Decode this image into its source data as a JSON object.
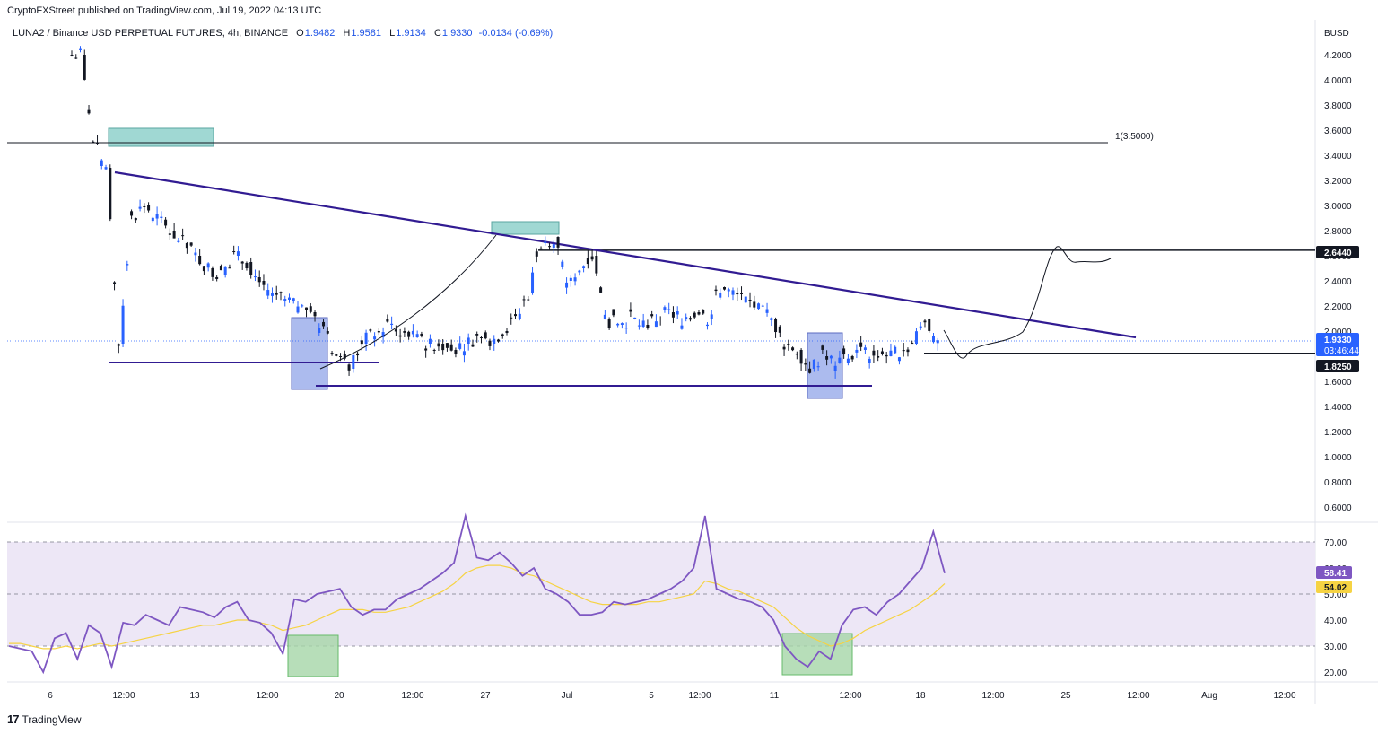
{
  "header": {
    "published_by": "CryptoFXStreet published on TradingView.com, Jul 19, 2022 04:13 UTC"
  },
  "legend": {
    "symbol": "LUNA2 / Binance USD PERPETUAL FUTURES, 4h, BINANCE",
    "open_label": "O",
    "open": "1.9482",
    "high_label": "H",
    "high": "1.9581",
    "low_label": "L",
    "low": "1.9134",
    "close_label": "C",
    "close": "1.9330",
    "change": "-0.0134 (-0.69%)"
  },
  "footer": {
    "brand": "TradingView",
    "logo_icon": "tradingview-logo-icon"
  },
  "colors": {
    "candle_up": "#2962ff",
    "candle_down": "#131722",
    "trendline": "#311b92",
    "supply_zone": "#80cbc4",
    "demand_zone": "#90a4e8",
    "rsi_line": "#7e57c2",
    "rsi_ma": "#f6d343",
    "rsi_band": "#ede7f6",
    "rsi_oversold_zone": "#a5d6a7"
  },
  "chart_data": [
    {
      "type": "candlestick",
      "title": "LUNA2 / Binance USD PERPETUAL FUTURES, 4h, BINANCE",
      "currency_label": "BUSD",
      "ylim": [
        0.5,
        4.4
      ],
      "yticks": [
        "4.2000",
        "4.0000",
        "3.8000",
        "3.6000",
        "3.4000",
        "3.2000",
        "3.0000",
        "2.8000",
        "2.6000",
        "2.4000",
        "2.2000",
        "2.0000",
        "1.6000",
        "1.4000",
        "1.2000",
        "1.0000",
        "0.8000",
        "0.6000"
      ],
      "xticks": [
        "6",
        "12:00",
        "13",
        "12:00",
        "20",
        "12:00",
        "27",
        "Jul",
        "5",
        "12:00",
        "11",
        "12:00",
        "18",
        "12:00",
        "25",
        "12:00",
        "Aug",
        "12:00"
      ],
      "fib_label": "1(3.5000)",
      "price_tags": [
        {
          "value": "2.6440",
          "style": "black"
        },
        {
          "value": "1.9330",
          "sub": "03:46:44",
          "style": "blue"
        },
        {
          "value": "1.8250",
          "style": "black"
        }
      ],
      "levels": [
        3.5,
        2.644,
        1.825
      ],
      "approx_close_series": [
        4.2,
        3.5,
        3.3,
        1.9,
        2.9,
        3.0,
        2.9,
        2.8,
        2.7,
        2.6,
        2.5,
        2.45,
        2.6,
        2.55,
        2.4,
        2.3,
        2.25,
        2.2,
        2.15,
        2.0,
        1.8,
        1.7,
        1.9,
        2.0,
        2.05,
        2.0,
        1.95,
        1.9,
        1.9,
        1.85,
        1.9,
        1.95,
        1.9,
        2.0,
        2.1,
        2.3,
        2.7,
        2.75,
        2.4,
        2.5,
        2.6,
        2.1,
        2.05,
        2.1,
        2.05,
        2.1,
        2.15,
        2.1,
        2.15,
        2.1,
        2.35,
        2.3,
        2.25,
        2.2,
        2.1,
        1.9,
        1.85,
        1.7,
        1.8,
        1.75,
        1.8,
        1.85,
        1.8,
        1.8,
        1.85,
        1.9,
        2.1,
        1.93
      ]
    },
    {
      "type": "line",
      "title": "RSI",
      "ylim": [
        15,
        80
      ],
      "yticks": [
        "70.00",
        "60.00",
        "50.00",
        "40.00",
        "30.00",
        "20.00"
      ],
      "band": [
        30,
        70
      ],
      "series": [
        {
          "name": "",
          "value_tag": "58.41",
          "values": [
            30,
            29,
            28,
            20,
            33,
            35,
            25,
            38,
            35,
            22,
            39,
            38,
            42,
            40,
            38,
            45,
            44,
            43,
            41,
            45,
            47,
            40,
            39,
            35,
            27,
            48,
            47,
            50,
            51,
            52,
            45,
            42,
            44,
            44,
            48,
            50,
            52,
            55,
            58,
            62,
            80,
            64,
            63,
            66,
            62,
            57,
            60,
            52,
            50,
            47,
            42,
            42,
            43,
            47,
            46,
            47,
            48,
            50,
            52,
            55,
            60,
            80,
            52,
            50,
            48,
            47,
            45,
            40,
            30,
            25,
            22,
            28,
            25,
            38,
            44,
            45,
            42,
            47,
            50,
            55,
            60,
            74,
            58
          ]
        },
        {
          "name": "",
          "value_tag": "54.02",
          "values": [
            31,
            31,
            30,
            29,
            29,
            30,
            29,
            30,
            31,
            30,
            31,
            32,
            33,
            34,
            35,
            36,
            37,
            38,
            38,
            39,
            40,
            40,
            39,
            38,
            36,
            37,
            38,
            40,
            42,
            44,
            44,
            44,
            43,
            43,
            44,
            45,
            47,
            49,
            51,
            54,
            58,
            60,
            61,
            61,
            60,
            58,
            57,
            55,
            53,
            51,
            49,
            47,
            46,
            46,
            46,
            46,
            47,
            47,
            48,
            49,
            50,
            55,
            54,
            52,
            51,
            49,
            47,
            45,
            41,
            37,
            34,
            32,
            30,
            31,
            33,
            36,
            38,
            40,
            42,
            44,
            47,
            50,
            54
          ]
        }
      ]
    }
  ]
}
